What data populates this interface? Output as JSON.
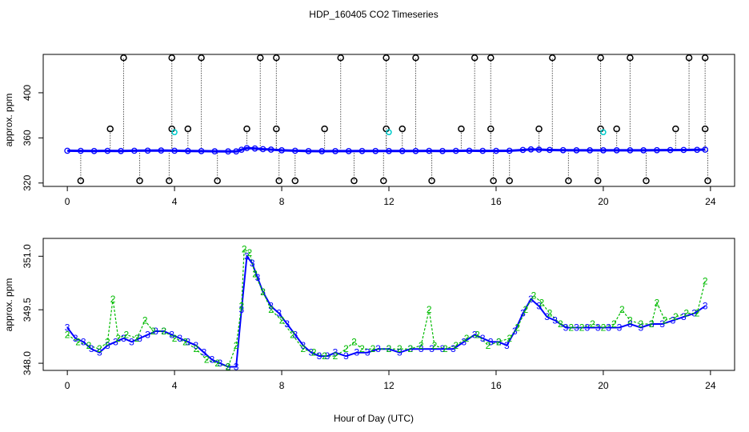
{
  "chart_data": [
    {
      "type": "scatter",
      "title": "HDP_160405  CO2 Timeseries",
      "xlabel": "Hour of Day (UTC)",
      "ylabel": "approx. ppm",
      "xlim": [
        -0.9,
        24.9
      ],
      "ylim": [
        317,
        434
      ],
      "x_ticks": [
        0,
        4,
        8,
        12,
        16,
        20,
        24
      ],
      "x_tick_labels": [
        "0",
        "4",
        "8",
        "12",
        "16",
        "20",
        "24"
      ],
      "y_ticks": [
        320,
        360,
        400
      ],
      "y_tick_labels": [
        "320",
        "360",
        "400"
      ],
      "grid": false,
      "baseline_points": [
        [
          0.0,
          348.6
        ],
        [
          0.5,
          348.5
        ],
        [
          1.0,
          348.4
        ],
        [
          1.5,
          348.5
        ],
        [
          2.0,
          348.4
        ],
        [
          2.5,
          348.6
        ],
        [
          3.0,
          348.7
        ],
        [
          3.5,
          348.8
        ],
        [
          4.0,
          348.6
        ],
        [
          4.5,
          348.4
        ],
        [
          5.0,
          348.3
        ],
        [
          5.5,
          348.1
        ],
        [
          6.0,
          348.0
        ],
        [
          6.3,
          348.0
        ],
        [
          6.5,
          349.5
        ],
        [
          6.7,
          351.0
        ],
        [
          7.0,
          350.6
        ],
        [
          7.3,
          350.0
        ],
        [
          7.6,
          349.6
        ],
        [
          8.0,
          349.0
        ],
        [
          8.5,
          348.6
        ],
        [
          9.0,
          348.3
        ],
        [
          9.5,
          348.2
        ],
        [
          10.0,
          348.3
        ],
        [
          10.5,
          348.3
        ],
        [
          11.0,
          348.4
        ],
        [
          11.5,
          348.4
        ],
        [
          12.0,
          348.4
        ],
        [
          12.5,
          348.4
        ],
        [
          13.0,
          348.4
        ],
        [
          13.5,
          348.5
        ],
        [
          14.0,
          348.4
        ],
        [
          14.5,
          348.5
        ],
        [
          15.0,
          348.6
        ],
        [
          15.5,
          348.5
        ],
        [
          16.0,
          348.5
        ],
        [
          16.5,
          348.6
        ],
        [
          17.0,
          349.3
        ],
        [
          17.3,
          349.8
        ],
        [
          17.6,
          349.6
        ],
        [
          18.0,
          349.3
        ],
        [
          18.5,
          349.1
        ],
        [
          19.0,
          349.0
        ],
        [
          19.5,
          349.0
        ],
        [
          20.0,
          349.0
        ],
        [
          20.5,
          349.0
        ],
        [
          21.0,
          349.0
        ],
        [
          21.5,
          349.0
        ],
        [
          22.0,
          349.1
        ],
        [
          22.5,
          349.2
        ],
        [
          23.0,
          349.3
        ],
        [
          23.5,
          349.4
        ],
        [
          23.8,
          349.6
        ]
      ],
      "spike_points": [
        [
          0.5,
          322
        ],
        [
          1.6,
          368
        ],
        [
          2.1,
          431
        ],
        [
          2.7,
          322
        ],
        [
          3.8,
          322
        ],
        [
          3.9,
          368
        ],
        [
          3.9,
          431
        ],
        [
          4.5,
          368
        ],
        [
          5.0,
          431
        ],
        [
          5.6,
          322
        ],
        [
          6.7,
          368
        ],
        [
          7.2,
          431
        ],
        [
          7.8,
          431
        ],
        [
          7.8,
          368
        ],
        [
          7.9,
          322
        ],
        [
          8.5,
          322
        ],
        [
          9.6,
          368
        ],
        [
          10.2,
          431
        ],
        [
          10.7,
          322
        ],
        [
          11.8,
          322
        ],
        [
          11.9,
          368
        ],
        [
          11.9,
          431
        ],
        [
          12.5,
          368
        ],
        [
          13.0,
          431
        ],
        [
          13.6,
          322
        ],
        [
          14.7,
          368
        ],
        [
          15.2,
          431
        ],
        [
          15.8,
          431
        ],
        [
          15.8,
          368
        ],
        [
          15.9,
          322
        ],
        [
          16.5,
          322
        ],
        [
          17.6,
          368
        ],
        [
          18.1,
          431
        ],
        [
          18.7,
          322
        ],
        [
          19.8,
          322
        ],
        [
          19.9,
          368
        ],
        [
          19.9,
          431
        ],
        [
          20.5,
          368
        ],
        [
          21.0,
          431
        ],
        [
          21.6,
          322
        ],
        [
          22.7,
          368
        ],
        [
          23.2,
          431
        ],
        [
          23.8,
          431
        ],
        [
          23.8,
          368
        ],
        [
          23.9,
          322
        ]
      ],
      "cyan_points": [
        [
          4.0,
          365
        ],
        [
          12.0,
          365
        ],
        [
          20.0,
          365
        ]
      ],
      "series_colors": {
        "baseline": "#0000ff",
        "spikes": "#000000",
        "highlight": "#00cccc"
      }
    },
    {
      "type": "line",
      "xlabel": "",
      "ylabel": "approx. ppm",
      "xlim": [
        -0.9,
        24.9
      ],
      "ylim": [
        347.8,
        351.5
      ],
      "x_ticks": [
        0,
        4,
        8,
        12,
        16,
        20,
        24
      ],
      "x_tick_labels": [
        "0",
        "4",
        "8",
        "12",
        "16",
        "20",
        "24"
      ],
      "y_ticks": [
        348.0,
        349.5,
        351.0
      ],
      "y_tick_labels": [
        "348.0",
        "349.5",
        "351.0"
      ],
      "grid": false,
      "series": [
        {
          "name": "3",
          "marker": "3",
          "color": "#0000ff",
          "points": [
            [
              0.0,
              349.0
            ],
            [
              0.3,
              348.7
            ],
            [
              0.6,
              348.6
            ],
            [
              0.9,
              348.4
            ],
            [
              1.2,
              348.3
            ],
            [
              1.5,
              348.5
            ],
            [
              1.8,
              348.6
            ],
            [
              2.1,
              348.7
            ],
            [
              2.4,
              348.6
            ],
            [
              2.7,
              348.7
            ],
            [
              3.0,
              348.8
            ],
            [
              3.3,
              348.9
            ],
            [
              3.6,
              348.9
            ],
            [
              3.9,
              348.8
            ],
            [
              4.2,
              348.7
            ],
            [
              4.5,
              348.6
            ],
            [
              4.8,
              348.5
            ],
            [
              5.1,
              348.3
            ],
            [
              5.4,
              348.1
            ],
            [
              5.7,
              348.0
            ],
            [
              6.0,
              347.9
            ],
            [
              6.3,
              347.9
            ],
            [
              6.5,
              349.5
            ],
            [
              6.7,
              351.0
            ],
            [
              6.9,
              350.8
            ],
            [
              7.1,
              350.4
            ],
            [
              7.3,
              350.0
            ],
            [
              7.6,
              349.6
            ],
            [
              7.9,
              349.4
            ],
            [
              8.2,
              349.1
            ],
            [
              8.5,
              348.8
            ],
            [
              8.8,
              348.5
            ],
            [
              9.1,
              348.3
            ],
            [
              9.4,
              348.2
            ],
            [
              9.7,
              348.2
            ],
            [
              10.0,
              348.3
            ],
            [
              10.4,
              348.2
            ],
            [
              10.8,
              348.3
            ],
            [
              11.2,
              348.3
            ],
            [
              11.6,
              348.4
            ],
            [
              12.0,
              348.4
            ],
            [
              12.4,
              348.3
            ],
            [
              12.8,
              348.4
            ],
            [
              13.2,
              348.4
            ],
            [
              13.6,
              348.4
            ],
            [
              14.0,
              348.4
            ],
            [
              14.4,
              348.4
            ],
            [
              14.8,
              348.6
            ],
            [
              15.2,
              348.8
            ],
            [
              15.5,
              348.7
            ],
            [
              15.8,
              348.6
            ],
            [
              16.1,
              348.6
            ],
            [
              16.4,
              348.5
            ],
            [
              16.7,
              348.9
            ],
            [
              17.0,
              349.4
            ],
            [
              17.3,
              349.8
            ],
            [
              17.6,
              349.6
            ],
            [
              17.9,
              349.3
            ],
            [
              18.2,
              349.2
            ],
            [
              18.6,
              349.0
            ],
            [
              19.0,
              349.0
            ],
            [
              19.4,
              349.0
            ],
            [
              19.8,
              349.0
            ],
            [
              20.2,
              349.0
            ],
            [
              20.6,
              349.0
            ],
            [
              21.0,
              349.1
            ],
            [
              21.4,
              349.0
            ],
            [
              21.8,
              349.1
            ],
            [
              22.2,
              349.1
            ],
            [
              22.6,
              349.2
            ],
            [
              23.0,
              349.3
            ],
            [
              23.4,
              349.4
            ],
            [
              23.8,
              349.6
            ]
          ]
        },
        {
          "name": "2",
          "marker": "2",
          "color": "#00bb00",
          "points": [
            [
              0.0,
              348.8
            ],
            [
              0.4,
              348.6
            ],
            [
              0.8,
              348.5
            ],
            [
              1.2,
              348.4
            ],
            [
              1.5,
              348.6
            ],
            [
              1.7,
              349.8
            ],
            [
              1.9,
              348.7
            ],
            [
              2.2,
              348.8
            ],
            [
              2.6,
              348.7
            ],
            [
              2.9,
              349.2
            ],
            [
              3.2,
              348.9
            ],
            [
              3.6,
              348.9
            ],
            [
              4.0,
              348.7
            ],
            [
              4.4,
              348.6
            ],
            [
              4.8,
              348.4
            ],
            [
              5.2,
              348.1
            ],
            [
              5.6,
              348.0
            ],
            [
              6.0,
              347.9
            ],
            [
              6.3,
              348.5
            ],
            [
              6.5,
              349.6
            ],
            [
              6.6,
              351.2
            ],
            [
              6.8,
              351.1
            ],
            [
              7.0,
              350.5
            ],
            [
              7.3,
              350.0
            ],
            [
              7.6,
              349.5
            ],
            [
              8.0,
              349.2
            ],
            [
              8.4,
              348.8
            ],
            [
              8.8,
              348.4
            ],
            [
              9.2,
              348.3
            ],
            [
              9.6,
              348.2
            ],
            [
              10.0,
              348.2
            ],
            [
              10.4,
              348.4
            ],
            [
              10.7,
              348.6
            ],
            [
              11.0,
              348.4
            ],
            [
              11.4,
              348.4
            ],
            [
              12.0,
              348.4
            ],
            [
              12.4,
              348.4
            ],
            [
              12.8,
              348.4
            ],
            [
              13.2,
              348.5
            ],
            [
              13.5,
              349.5
            ],
            [
              13.7,
              348.5
            ],
            [
              14.1,
              348.4
            ],
            [
              14.5,
              348.5
            ],
            [
              14.9,
              348.7
            ],
            [
              15.3,
              348.8
            ],
            [
              15.7,
              348.5
            ],
            [
              16.1,
              348.6
            ],
            [
              16.5,
              348.7
            ],
            [
              16.8,
              349.0
            ],
            [
              17.1,
              349.5
            ],
            [
              17.4,
              349.9
            ],
            [
              17.7,
              349.7
            ],
            [
              18.0,
              349.4
            ],
            [
              18.4,
              349.1
            ],
            [
              18.8,
              349.0
            ],
            [
              19.2,
              349.0
            ],
            [
              19.6,
              349.1
            ],
            [
              20.0,
              349.0
            ],
            [
              20.4,
              349.1
            ],
            [
              20.7,
              349.5
            ],
            [
              21.0,
              349.2
            ],
            [
              21.4,
              349.1
            ],
            [
              21.8,
              349.1
            ],
            [
              22.0,
              349.7
            ],
            [
              22.3,
              349.2
            ],
            [
              22.7,
              349.3
            ],
            [
              23.1,
              349.4
            ],
            [
              23.5,
              349.4
            ],
            [
              23.8,
              350.3
            ]
          ]
        }
      ]
    }
  ]
}
